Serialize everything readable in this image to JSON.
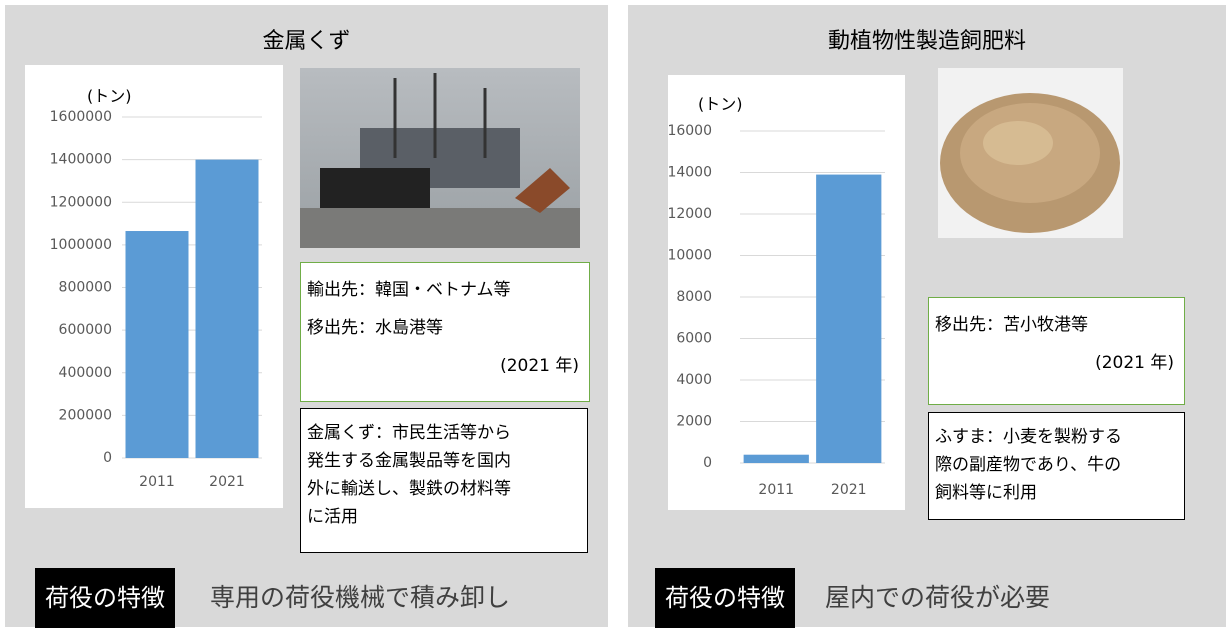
{
  "chart_data": [
    {
      "type": "bar",
      "y_label": "(トン)",
      "categories": [
        "2011",
        "2021"
      ],
      "values": [
        1065000,
        1400000
      ],
      "color": "#5b9bd5",
      "ylim": [
        0,
        1600000
      ],
      "yticks": [
        0,
        200000,
        400000,
        600000,
        800000,
        1000000,
        1200000,
        1400000,
        1600000
      ],
      "grid": true
    },
    {
      "type": "bar",
      "y_label": "(トン)",
      "categories": [
        "2011",
        "2021"
      ],
      "values": [
        400,
        13900
      ],
      "color": "#5b9bd5",
      "ylim": [
        0,
        16000
      ],
      "yticks": [
        0,
        2000,
        4000,
        6000,
        8000,
        10000,
        12000,
        14000,
        16000
      ],
      "grid": true
    }
  ],
  "panels": [
    {
      "title": "金属くず",
      "info_lines": [
        "輸出先：韓国・ベトナム等",
        "移出先：水島港等"
      ],
      "year": "(2021 年)",
      "description_lines": [
        "金属くず：市民生活等から",
        "発生する金属製品等を国内",
        "外に輸送し、製鉄の材料等",
        "に活用"
      ],
      "feature_label": "荷役の特徴",
      "feature_text": "専用の荷役機械で積み卸し"
    },
    {
      "title": "動植物性製造飼肥料",
      "info_lines": [
        "移出先：苫小牧港等"
      ],
      "year": "(2021 年)",
      "description_lines": [
        "ふすま：小麦を製粉する",
        "際の副産物であり、牛の",
        "飼料等に利用"
      ],
      "feature_label": "荷役の特徴",
      "feature_text": "屋内での荷役が必要"
    }
  ]
}
